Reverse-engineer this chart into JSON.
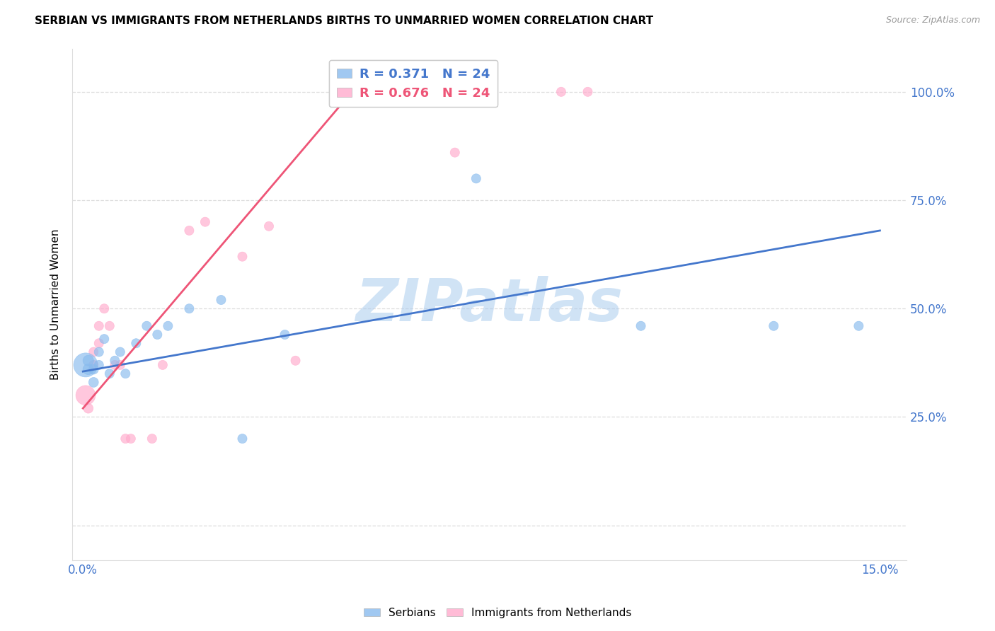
{
  "title": "SERBIAN VS IMMIGRANTS FROM NETHERLANDS BIRTHS TO UNMARRIED WOMEN CORRELATION CHART",
  "source": "Source: ZipAtlas.com",
  "ylabel": "Births to Unmarried Women",
  "blue_R": 0.371,
  "pink_R": 0.676,
  "N": 24,
  "blue_color": "#88BBEE",
  "pink_color": "#FFAACC",
  "blue_line_color": "#4477CC",
  "pink_line_color": "#EE5577",
  "watermark": "ZIPatlas",
  "watermark_color": "#AACCEE",
  "legend_series": [
    "Serbians",
    "Immigrants from Netherlands"
  ],
  "serbian_x": [
    0.0005,
    0.001,
    0.001,
    0.002,
    0.002,
    0.003,
    0.003,
    0.004,
    0.005,
    0.006,
    0.007,
    0.008,
    0.01,
    0.012,
    0.014,
    0.016,
    0.02,
    0.026,
    0.03,
    0.038,
    0.074,
    0.105,
    0.13,
    0.146
  ],
  "serbian_y": [
    0.37,
    0.36,
    0.38,
    0.36,
    0.33,
    0.37,
    0.4,
    0.43,
    0.35,
    0.38,
    0.4,
    0.35,
    0.42,
    0.46,
    0.44,
    0.46,
    0.5,
    0.52,
    0.2,
    0.44,
    0.8,
    0.46,
    0.46,
    0.46
  ],
  "serbian_size": [
    600,
    120,
    120,
    100,
    100,
    90,
    90,
    90,
    90,
    90,
    90,
    90,
    90,
    90,
    90,
    90,
    90,
    90,
    90,
    90,
    90,
    90,
    90,
    90
  ],
  "netherlands_x": [
    0.0005,
    0.001,
    0.002,
    0.002,
    0.003,
    0.003,
    0.004,
    0.005,
    0.006,
    0.007,
    0.008,
    0.009,
    0.013,
    0.015,
    0.02,
    0.023,
    0.03,
    0.035,
    0.04,
    0.065,
    0.07,
    0.07,
    0.09,
    0.095
  ],
  "netherlands_y": [
    0.3,
    0.27,
    0.37,
    0.4,
    0.42,
    0.46,
    0.5,
    0.46,
    0.37,
    0.37,
    0.2,
    0.2,
    0.2,
    0.37,
    0.68,
    0.7,
    0.62,
    0.69,
    0.38,
    1.0,
    1.0,
    0.86,
    1.0,
    1.0
  ],
  "netherlands_size": [
    400,
    100,
    90,
    90,
    90,
    90,
    90,
    90,
    90,
    90,
    90,
    90,
    90,
    90,
    90,
    90,
    90,
    90,
    90,
    90,
    90,
    90,
    90,
    90
  ],
  "xlim": [
    -0.002,
    0.155
  ],
  "ylim": [
    -0.08,
    1.1
  ],
  "ytick_positions": [
    0.0,
    0.25,
    0.5,
    0.75,
    1.0
  ],
  "ytick_labels_right": [
    "",
    "25.0%",
    "50.0%",
    "75.0%",
    "100.0%"
  ],
  "xtick_positions": [
    0.0,
    0.03,
    0.06,
    0.09,
    0.12,
    0.15
  ],
  "blue_line_x": [
    0.0,
    0.15
  ],
  "blue_line_y": [
    0.355,
    0.68
  ],
  "pink_line_x": [
    0.0,
    0.052
  ],
  "pink_line_y": [
    0.27,
    1.02
  ]
}
